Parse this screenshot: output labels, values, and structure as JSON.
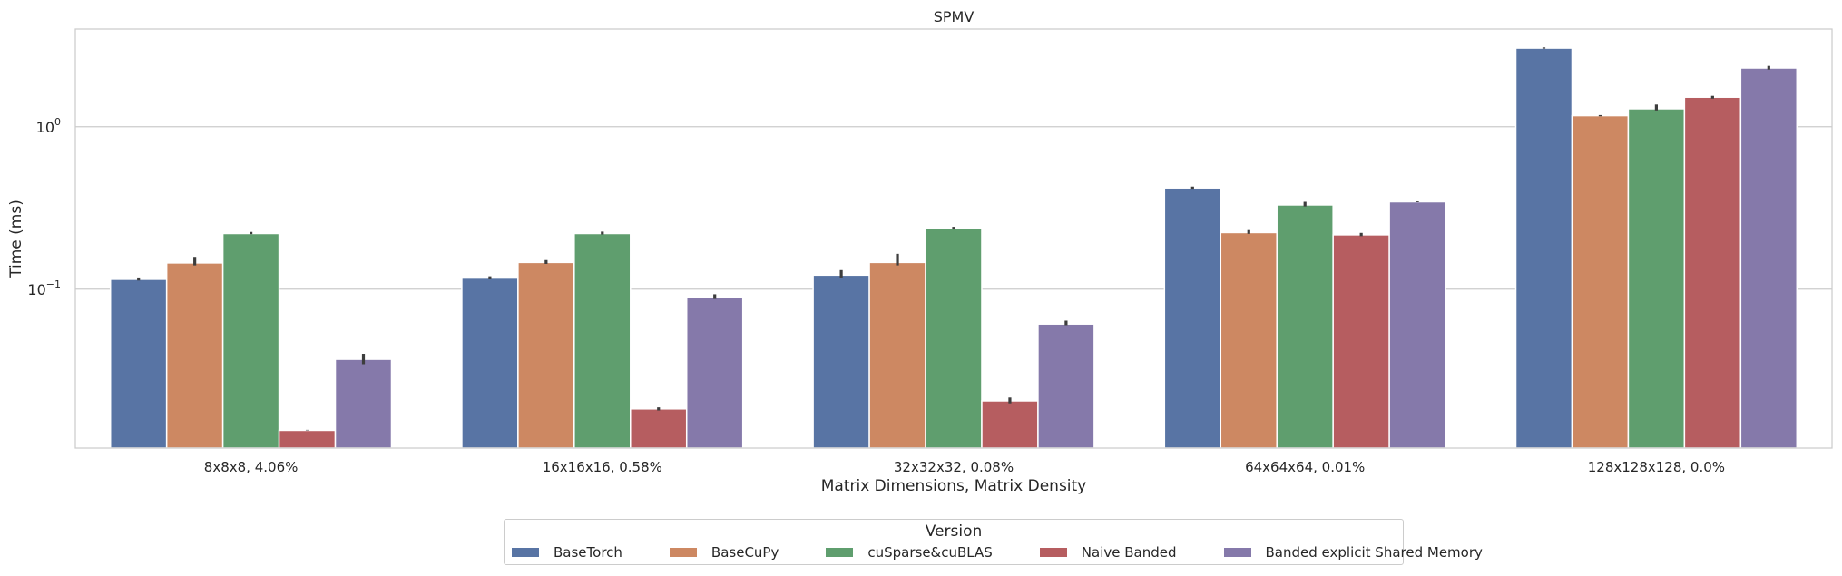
{
  "chart_data": {
    "type": "bar",
    "title": "SPMV",
    "xlabel": "Matrix Dimensions, Matrix Density",
    "ylabel": "Time (ms)",
    "yscale": "log",
    "ylim": [
      0.0105,
      4.0
    ],
    "yticks": [
      {
        "value": 0.1,
        "base": "10",
        "exp": "−1"
      },
      {
        "value": 1,
        "base": "10",
        "exp": "0"
      }
    ],
    "categories": [
      "8x8x8, 4.06%",
      "16x16x16, 0.58%",
      "32x32x32, 0.08%",
      "64x64x64, 0.01%",
      "128x128x128, 0.0%"
    ],
    "series": [
      {
        "name": "BaseTorch",
        "color": "#5874a4",
        "values": [
          0.115,
          0.117,
          0.122,
          0.42,
          3.05
        ],
        "err": [
          [
            0.113,
            0.118
          ],
          [
            0.115,
            0.12
          ],
          [
            0.118,
            0.131
          ],
          [
            0.415,
            0.428
          ],
          [
            3.03,
            3.08
          ]
        ]
      },
      {
        "name": "BaseCuPy",
        "color": "#cd8862",
        "values": [
          0.145,
          0.146,
          0.146,
          0.223,
          1.17
        ],
        "err": [
          [
            0.14,
            0.158
          ],
          [
            0.143,
            0.151
          ],
          [
            0.14,
            0.165
          ],
          [
            0.219,
            0.231
          ],
          [
            1.16,
            1.18
          ]
        ]
      },
      {
        "name": "cuSparse&cuBLAS",
        "color": "#5f9e6e",
        "values": [
          0.22,
          0.22,
          0.237,
          0.33,
          1.29
        ],
        "err": [
          [
            0.218,
            0.225
          ],
          [
            0.217,
            0.226
          ],
          [
            0.233,
            0.242
          ],
          [
            0.323,
            0.345
          ],
          [
            1.26,
            1.37
          ]
        ]
      },
      {
        "name": "Naive Banded",
        "color": "#b65d60",
        "values": [
          0.0135,
          0.0183,
          0.0205,
          0.216,
          1.52
        ],
        "err": [
          [
            0.0135,
            0.0136
          ],
          [
            0.0179,
            0.0187
          ],
          [
            0.0198,
            0.0215
          ],
          [
            0.212,
            0.222
          ],
          [
            1.49,
            1.55
          ]
        ]
      },
      {
        "name": "Banded explicit Shared Memory",
        "color": "#8579aa",
        "values": [
          0.037,
          0.089,
          0.061,
          0.345,
          2.3
        ],
        "err": [
          [
            0.0345,
            0.04
          ],
          [
            0.087,
            0.093
          ],
          [
            0.06,
            0.064
          ],
          [
            0.343,
            0.347
          ],
          [
            2.25,
            2.37
          ]
        ]
      }
    ],
    "legend": {
      "title": "Version",
      "position": "bottom-center"
    },
    "grid": "horizontal"
  }
}
